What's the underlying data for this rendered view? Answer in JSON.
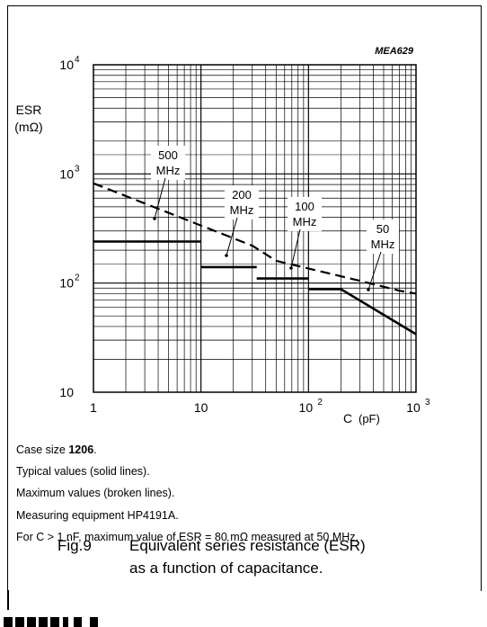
{
  "chart_data": {
    "type": "line",
    "code": "MEA629",
    "ylabel": "ESR",
    "yunit": "(mΩ)",
    "xlabel": "C",
    "xunit": "(pF)",
    "xscale": "log",
    "yscale": "log",
    "xlim": [
      1,
      1000
    ],
    "ylim": [
      10,
      10000
    ],
    "x_ticks": [
      {
        "base": "1",
        "exp": ""
      },
      {
        "base": "10",
        "exp": ""
      },
      {
        "base": "10",
        "exp": "2"
      },
      {
        "base": "10",
        "exp": "3"
      }
    ],
    "y_ticks": [
      {
        "base": "10",
        "exp": ""
      },
      {
        "base": "10",
        "exp": "2"
      },
      {
        "base": "10",
        "exp": "3"
      },
      {
        "base": "10",
        "exp": "4"
      }
    ],
    "grid": true,
    "series": [
      {
        "name": "500 MHz",
        "style": "solid",
        "x": [
          1,
          10
        ],
        "y": [
          240,
          240
        ]
      },
      {
        "name": "200 MHz",
        "style": "solid",
        "x": [
          10,
          33
        ],
        "y": [
          140,
          140
        ]
      },
      {
        "name": "100 MHz",
        "style": "solid",
        "x": [
          33,
          100
        ],
        "y": [
          110,
          110
        ]
      },
      {
        "name": "50 MHz",
        "style": "solid",
        "x": [
          100,
          200,
          1000
        ],
        "y": [
          88,
          88,
          34
        ]
      },
      {
        "name": "maximum",
        "style": "dashed",
        "x": [
          1,
          30,
          50,
          300,
          700,
          1000
        ],
        "y": [
          820,
          220,
          160,
          105,
          85,
          80
        ]
      }
    ],
    "annotations": [
      {
        "line1": "500",
        "line2": "MHz"
      },
      {
        "line1": "200",
        "line2": "MHz"
      },
      {
        "line1": "100",
        "line2": "MHz"
      },
      {
        "line1": "50",
        "line2": "MHz"
      }
    ]
  },
  "notes": {
    "case_size_prefix": "Case size ",
    "case_size_value": "1206",
    "case_size_suffix": ".",
    "typical": "Typical values (solid lines).",
    "maximum": "Maximum values (broken lines).",
    "equipment": "Measuring equipment HP4191A.",
    "footnote": "For C > 1 nF, maximum value of ESR = 80 mΩ measured at 50 MHz."
  },
  "caption": {
    "number": "Fig.9",
    "line1": "Equivalent series resistance (ESR)",
    "line2": "as a function of capacitance."
  }
}
